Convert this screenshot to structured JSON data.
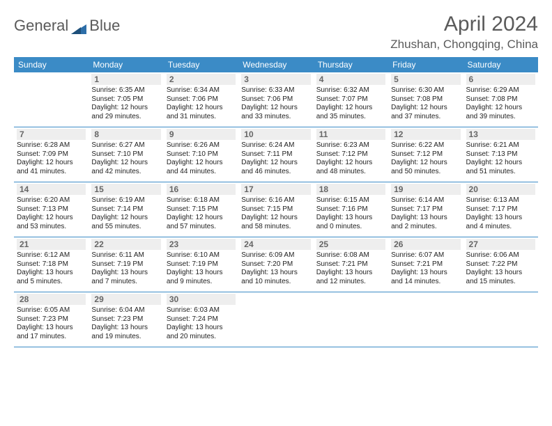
{
  "brand": {
    "part1": "General",
    "part2": "Blue"
  },
  "title": "April 2024",
  "location": "Zhushan, Chongqing, China",
  "colors": {
    "header_bg": "#3b8bc6",
    "header_text": "#ffffff",
    "daynum_bg": "#eeeeee",
    "daynum_text": "#666666",
    "body_text": "#222222",
    "title_text": "#5a5a5a",
    "rule": "#3b8bc6",
    "logo_blue": "#2d6ea8"
  },
  "weekdays": [
    "Sunday",
    "Monday",
    "Tuesday",
    "Wednesday",
    "Thursday",
    "Friday",
    "Saturday"
  ],
  "weeks": [
    [
      {
        "blank": true
      },
      {
        "n": "1",
        "sunrise": "Sunrise: 6:35 AM",
        "sunset": "Sunset: 7:05 PM",
        "d1": "Daylight: 12 hours",
        "d2": "and 29 minutes."
      },
      {
        "n": "2",
        "sunrise": "Sunrise: 6:34 AM",
        "sunset": "Sunset: 7:06 PM",
        "d1": "Daylight: 12 hours",
        "d2": "and 31 minutes."
      },
      {
        "n": "3",
        "sunrise": "Sunrise: 6:33 AM",
        "sunset": "Sunset: 7:06 PM",
        "d1": "Daylight: 12 hours",
        "d2": "and 33 minutes."
      },
      {
        "n": "4",
        "sunrise": "Sunrise: 6:32 AM",
        "sunset": "Sunset: 7:07 PM",
        "d1": "Daylight: 12 hours",
        "d2": "and 35 minutes."
      },
      {
        "n": "5",
        "sunrise": "Sunrise: 6:30 AM",
        "sunset": "Sunset: 7:08 PM",
        "d1": "Daylight: 12 hours",
        "d2": "and 37 minutes."
      },
      {
        "n": "6",
        "sunrise": "Sunrise: 6:29 AM",
        "sunset": "Sunset: 7:08 PM",
        "d1": "Daylight: 12 hours",
        "d2": "and 39 minutes."
      }
    ],
    [
      {
        "n": "7",
        "sunrise": "Sunrise: 6:28 AM",
        "sunset": "Sunset: 7:09 PM",
        "d1": "Daylight: 12 hours",
        "d2": "and 41 minutes."
      },
      {
        "n": "8",
        "sunrise": "Sunrise: 6:27 AM",
        "sunset": "Sunset: 7:10 PM",
        "d1": "Daylight: 12 hours",
        "d2": "and 42 minutes."
      },
      {
        "n": "9",
        "sunrise": "Sunrise: 6:26 AM",
        "sunset": "Sunset: 7:10 PM",
        "d1": "Daylight: 12 hours",
        "d2": "and 44 minutes."
      },
      {
        "n": "10",
        "sunrise": "Sunrise: 6:24 AM",
        "sunset": "Sunset: 7:11 PM",
        "d1": "Daylight: 12 hours",
        "d2": "and 46 minutes."
      },
      {
        "n": "11",
        "sunrise": "Sunrise: 6:23 AM",
        "sunset": "Sunset: 7:12 PM",
        "d1": "Daylight: 12 hours",
        "d2": "and 48 minutes."
      },
      {
        "n": "12",
        "sunrise": "Sunrise: 6:22 AM",
        "sunset": "Sunset: 7:12 PM",
        "d1": "Daylight: 12 hours",
        "d2": "and 50 minutes."
      },
      {
        "n": "13",
        "sunrise": "Sunrise: 6:21 AM",
        "sunset": "Sunset: 7:13 PM",
        "d1": "Daylight: 12 hours",
        "d2": "and 51 minutes."
      }
    ],
    [
      {
        "n": "14",
        "sunrise": "Sunrise: 6:20 AM",
        "sunset": "Sunset: 7:13 PM",
        "d1": "Daylight: 12 hours",
        "d2": "and 53 minutes."
      },
      {
        "n": "15",
        "sunrise": "Sunrise: 6:19 AM",
        "sunset": "Sunset: 7:14 PM",
        "d1": "Daylight: 12 hours",
        "d2": "and 55 minutes."
      },
      {
        "n": "16",
        "sunrise": "Sunrise: 6:18 AM",
        "sunset": "Sunset: 7:15 PM",
        "d1": "Daylight: 12 hours",
        "d2": "and 57 minutes."
      },
      {
        "n": "17",
        "sunrise": "Sunrise: 6:16 AM",
        "sunset": "Sunset: 7:15 PM",
        "d1": "Daylight: 12 hours",
        "d2": "and 58 minutes."
      },
      {
        "n": "18",
        "sunrise": "Sunrise: 6:15 AM",
        "sunset": "Sunset: 7:16 PM",
        "d1": "Daylight: 13 hours",
        "d2": "and 0 minutes."
      },
      {
        "n": "19",
        "sunrise": "Sunrise: 6:14 AM",
        "sunset": "Sunset: 7:17 PM",
        "d1": "Daylight: 13 hours",
        "d2": "and 2 minutes."
      },
      {
        "n": "20",
        "sunrise": "Sunrise: 6:13 AM",
        "sunset": "Sunset: 7:17 PM",
        "d1": "Daylight: 13 hours",
        "d2": "and 4 minutes."
      }
    ],
    [
      {
        "n": "21",
        "sunrise": "Sunrise: 6:12 AM",
        "sunset": "Sunset: 7:18 PM",
        "d1": "Daylight: 13 hours",
        "d2": "and 5 minutes."
      },
      {
        "n": "22",
        "sunrise": "Sunrise: 6:11 AM",
        "sunset": "Sunset: 7:19 PM",
        "d1": "Daylight: 13 hours",
        "d2": "and 7 minutes."
      },
      {
        "n": "23",
        "sunrise": "Sunrise: 6:10 AM",
        "sunset": "Sunset: 7:19 PM",
        "d1": "Daylight: 13 hours",
        "d2": "and 9 minutes."
      },
      {
        "n": "24",
        "sunrise": "Sunrise: 6:09 AM",
        "sunset": "Sunset: 7:20 PM",
        "d1": "Daylight: 13 hours",
        "d2": "and 10 minutes."
      },
      {
        "n": "25",
        "sunrise": "Sunrise: 6:08 AM",
        "sunset": "Sunset: 7:21 PM",
        "d1": "Daylight: 13 hours",
        "d2": "and 12 minutes."
      },
      {
        "n": "26",
        "sunrise": "Sunrise: 6:07 AM",
        "sunset": "Sunset: 7:21 PM",
        "d1": "Daylight: 13 hours",
        "d2": "and 14 minutes."
      },
      {
        "n": "27",
        "sunrise": "Sunrise: 6:06 AM",
        "sunset": "Sunset: 7:22 PM",
        "d1": "Daylight: 13 hours",
        "d2": "and 15 minutes."
      }
    ],
    [
      {
        "n": "28",
        "sunrise": "Sunrise: 6:05 AM",
        "sunset": "Sunset: 7:23 PM",
        "d1": "Daylight: 13 hours",
        "d2": "and 17 minutes."
      },
      {
        "n": "29",
        "sunrise": "Sunrise: 6:04 AM",
        "sunset": "Sunset: 7:23 PM",
        "d1": "Daylight: 13 hours",
        "d2": "and 19 minutes."
      },
      {
        "n": "30",
        "sunrise": "Sunrise: 6:03 AM",
        "sunset": "Sunset: 7:24 PM",
        "d1": "Daylight: 13 hours",
        "d2": "and 20 minutes."
      },
      {
        "blank": true
      },
      {
        "blank": true
      },
      {
        "blank": true
      },
      {
        "blank": true
      }
    ]
  ]
}
